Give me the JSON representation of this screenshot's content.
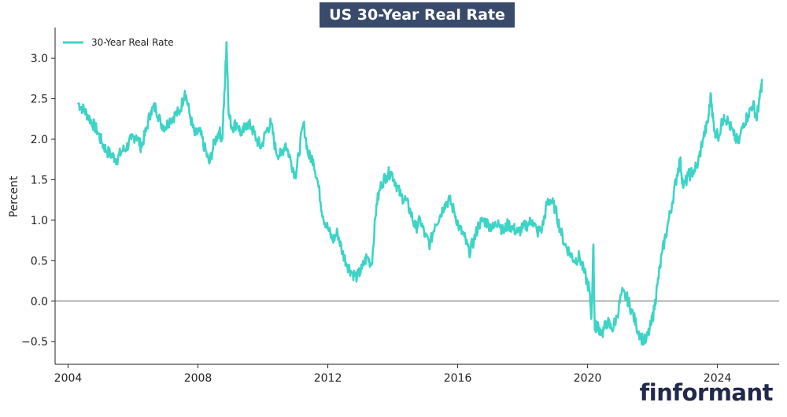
{
  "chart_data": {
    "type": "line",
    "title": "US 30-Year Real Rate",
    "xlabel": "",
    "ylabel": "Percent",
    "xlim": [
      2003.6,
      2025.9
    ],
    "ylim": [
      -0.78,
      3.38
    ],
    "x_ticks": [
      2004,
      2008,
      2012,
      2016,
      2020,
      2024
    ],
    "y_ticks": [
      -0.5,
      0.0,
      0.5,
      1.0,
      1.5,
      2.0,
      2.5,
      3.0
    ],
    "y_tick_labels": [
      "−0.5",
      "0.0",
      "0.5",
      "1.0",
      "1.5",
      "2.0",
      "2.5",
      "3.0"
    ],
    "zero_line": 0.0,
    "legend": {
      "position": "top-left",
      "entries": [
        "30-Year Real Rate"
      ]
    },
    "series": [
      {
        "name": "30-Year Real Rate",
        "color": "#3dd4c6",
        "x": [
          2004.3,
          2004.45,
          2004.6,
          2004.75,
          2004.9,
          2005.05,
          2005.2,
          2005.35,
          2005.5,
          2005.65,
          2005.8,
          2005.95,
          2006.1,
          2006.25,
          2006.4,
          2006.55,
          2006.7,
          2006.85,
          2007.0,
          2007.15,
          2007.3,
          2007.45,
          2007.6,
          2007.75,
          2007.9,
          2008.05,
          2008.2,
          2008.35,
          2008.5,
          2008.65,
          2008.75,
          2008.82,
          2008.88,
          2008.95,
          2009.05,
          2009.2,
          2009.35,
          2009.5,
          2009.65,
          2009.8,
          2009.95,
          2010.1,
          2010.25,
          2010.4,
          2010.55,
          2010.7,
          2010.85,
          2011.0,
          2011.1,
          2011.25,
          2011.4,
          2011.55,
          2011.7,
          2011.85,
          2012.0,
          2012.15,
          2012.3,
          2012.45,
          2012.6,
          2012.75,
          2012.9,
          2013.05,
          2013.2,
          2013.35,
          2013.5,
          2013.65,
          2013.8,
          2013.95,
          2014.1,
          2014.25,
          2014.4,
          2014.55,
          2014.7,
          2014.85,
          2015.0,
          2015.15,
          2015.3,
          2015.45,
          2015.6,
          2015.75,
          2015.9,
          2016.05,
          2016.2,
          2016.35,
          2016.5,
          2016.65,
          2016.8,
          2016.95,
          2017.1,
          2017.25,
          2017.4,
          2017.55,
          2017.7,
          2017.85,
          2018.0,
          2018.15,
          2018.3,
          2018.45,
          2018.6,
          2018.75,
          2018.85,
          2019.0,
          2019.15,
          2019.3,
          2019.45,
          2019.6,
          2019.75,
          2019.9,
          2020.05,
          2020.12,
          2020.18,
          2020.22,
          2020.3,
          2020.45,
          2020.6,
          2020.75,
          2020.9,
          2021.05,
          2021.2,
          2021.35,
          2021.5,
          2021.65,
          2021.8,
          2021.95,
          2022.05,
          2022.15,
          2022.3,
          2022.45,
          2022.6,
          2022.75,
          2022.85,
          2022.95,
          2023.1,
          2023.25,
          2023.4,
          2023.55,
          2023.7,
          2023.8,
          2023.9,
          2024.05,
          2024.2,
          2024.35,
          2024.5,
          2024.65,
          2024.8,
          2024.95,
          2025.1,
          2025.2,
          2025.3,
          2025.38
        ],
        "values": [
          2.45,
          2.38,
          2.3,
          2.2,
          2.1,
          1.95,
          1.85,
          1.8,
          1.75,
          1.85,
          1.9,
          2.0,
          2.05,
          1.9,
          2.1,
          2.35,
          2.4,
          2.2,
          2.15,
          2.25,
          2.3,
          2.35,
          2.6,
          2.3,
          2.05,
          2.1,
          1.9,
          1.7,
          1.95,
          2.1,
          2.0,
          2.6,
          3.2,
          2.3,
          2.15,
          2.2,
          2.05,
          2.2,
          2.15,
          2.0,
          1.9,
          2.1,
          2.2,
          1.85,
          1.8,
          1.95,
          1.75,
          1.55,
          1.8,
          2.2,
          1.8,
          1.75,
          1.45,
          1.05,
          0.9,
          0.75,
          0.85,
          0.6,
          0.45,
          0.35,
          0.3,
          0.4,
          0.55,
          0.45,
          1.2,
          1.45,
          1.55,
          1.6,
          1.45,
          1.3,
          1.25,
          1.1,
          0.9,
          1.0,
          0.8,
          0.7,
          0.95,
          1.05,
          1.2,
          1.25,
          1.1,
          0.9,
          0.8,
          0.6,
          0.75,
          0.95,
          1.0,
          0.95,
          0.9,
          1.0,
          0.85,
          0.95,
          0.9,
          0.85,
          0.9,
          0.95,
          1.0,
          0.85,
          0.9,
          1.2,
          1.25,
          1.15,
          0.9,
          0.7,
          0.6,
          0.5,
          0.55,
          0.35,
          0.15,
          -0.2,
          0.7,
          -0.35,
          -0.3,
          -0.4,
          -0.25,
          -0.35,
          -0.2,
          0.1,
          0.05,
          -0.1,
          -0.3,
          -0.45,
          -0.5,
          -0.3,
          -0.1,
          0.2,
          0.6,
          0.9,
          1.2,
          1.55,
          1.75,
          1.4,
          1.55,
          1.6,
          1.7,
          2.0,
          2.2,
          2.55,
          2.1,
          2.05,
          2.3,
          2.2,
          2.05,
          1.95,
          2.2,
          2.3,
          2.45,
          2.25,
          2.5,
          2.72
        ]
      }
    ]
  },
  "brand": {
    "name": "finformant"
  }
}
